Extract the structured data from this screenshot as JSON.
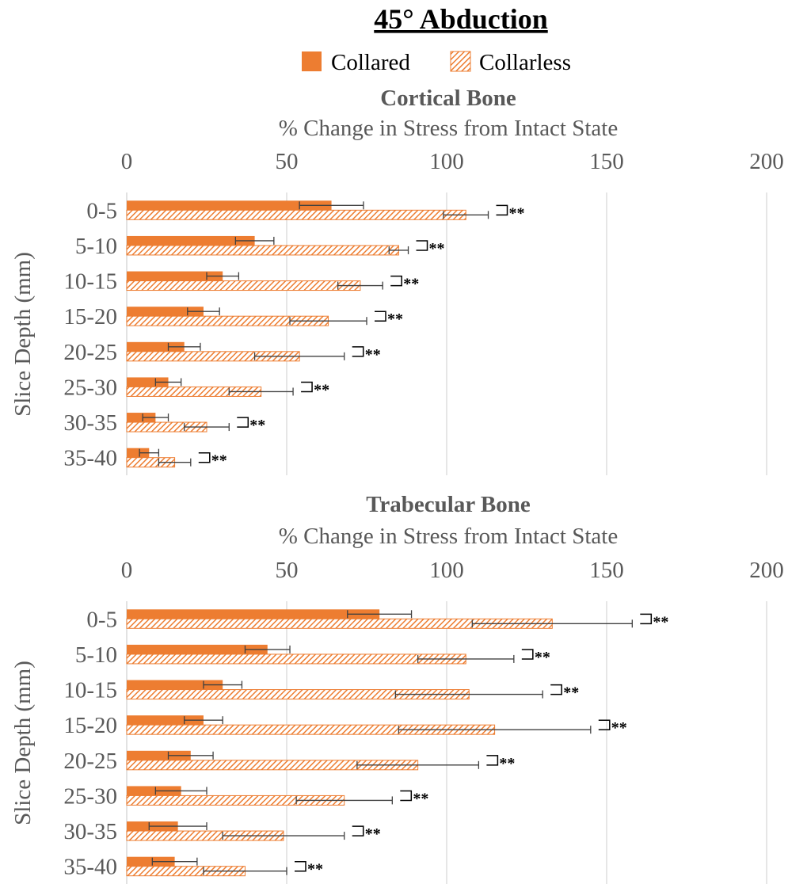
{
  "title": "45° Abduction",
  "legend": [
    {
      "label": "Collared",
      "pattern": "solid",
      "color": "#ED7D31"
    },
    {
      "label": "Collarless",
      "pattern": "hatched",
      "color": "#ED7D31"
    }
  ],
  "colors": {
    "bar": "#ED7D31",
    "grid": "#D9D9D9",
    "text": "#595959",
    "error_bar": "#404040"
  },
  "chart_data": [
    {
      "type": "bar",
      "orientation": "horizontal",
      "title": "Cortical Bone",
      "xlabel": "% Change in Stress from Intact State",
      "ylabel": "Slice Depth (mm)",
      "xlim": [
        0,
        200
      ],
      "xticks": [
        0,
        50,
        100,
        150,
        200
      ],
      "x_axis_position": "top",
      "grid": true,
      "categories": [
        "0-5",
        "5-10",
        "10-15",
        "15-20",
        "20-25",
        "25-30",
        "30-35",
        "35-40"
      ],
      "series": [
        {
          "name": "Collared",
          "values": [
            64,
            40,
            30,
            24,
            18,
            13,
            9,
            7
          ],
          "error": [
            10,
            6,
            5,
            5,
            5,
            4,
            4,
            3
          ]
        },
        {
          "name": "Collarless",
          "values": [
            106,
            85,
            73,
            63,
            54,
            42,
            25,
            15
          ],
          "error": [
            7,
            3,
            7,
            12,
            14,
            10,
            7,
            5
          ]
        }
      ],
      "significance": [
        "**",
        "**",
        "**",
        "**",
        "**",
        "**",
        "**",
        "**"
      ]
    },
    {
      "type": "bar",
      "orientation": "horizontal",
      "title": "Trabecular Bone",
      "xlabel": "% Change in Stress from Intact State",
      "ylabel": "Slice Depth (mm)",
      "xlim": [
        0,
        200
      ],
      "xticks": [
        0,
        50,
        100,
        150,
        200
      ],
      "x_axis_position": "top",
      "grid": true,
      "categories": [
        "0-5",
        "5-10",
        "10-15",
        "15-20",
        "20-25",
        "25-30",
        "30-35",
        "35-40"
      ],
      "series": [
        {
          "name": "Collared",
          "values": [
            79,
            44,
            30,
            24,
            20,
            17,
            16,
            15
          ],
          "error": [
            10,
            7,
            6,
            6,
            7,
            8,
            9,
            7
          ]
        },
        {
          "name": "Collarless",
          "values": [
            133,
            106,
            107,
            115,
            91,
            68,
            49,
            37
          ],
          "error": [
            25,
            15,
            23,
            30,
            19,
            15,
            19,
            13
          ]
        }
      ],
      "significance": [
        "**",
        "**",
        "**",
        "**",
        "**",
        "**",
        "**",
        "**"
      ]
    }
  ]
}
